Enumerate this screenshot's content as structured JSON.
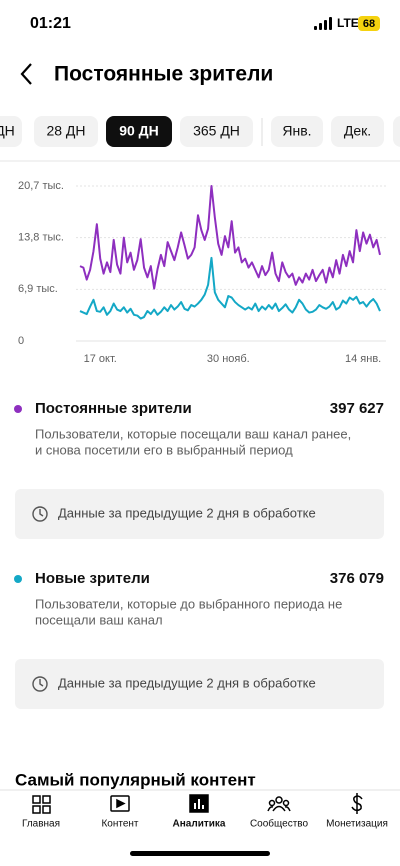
{
  "status_bar": {
    "time": "01:21",
    "network": "LTE",
    "battery": "68"
  },
  "header": {
    "title": "Постоянные зрители"
  },
  "tabs": [
    "ДН",
    "28 ДН",
    "90 ДН",
    "365 ДН",
    "Янв.",
    "Дек."
  ],
  "selected_tab": 2,
  "chart_data": {
    "type": "line",
    "categories": [
      null,
      null,
      null,
      null,
      null,
      null,
      "17 окт.",
      null,
      null,
      null,
      null,
      null,
      null,
      null,
      null,
      null,
      null,
      null,
      null,
      null,
      null,
      null,
      null,
      null,
      null,
      null,
      null,
      null,
      null,
      null,
      null,
      null,
      null,
      null,
      null,
      null,
      null,
      null,
      null,
      null,
      null,
      null,
      null,
      null,
      "30 нояб.",
      null,
      null,
      null,
      null,
      null,
      null,
      null,
      null,
      null,
      null,
      null,
      null,
      null,
      null,
      null,
      null,
      null,
      null,
      null,
      null,
      null,
      null,
      null,
      null,
      null,
      null,
      null,
      null,
      null,
      null,
      null,
      null,
      null,
      null,
      null,
      null,
      null,
      null,
      null,
      "14 янв.",
      null,
      null,
      null,
      null,
      null
    ],
    "series": [
      {
        "name": "Постоянные зрители",
        "color": "#8e2fbf",
        "values": [
          10.0,
          9.8,
          8.2,
          9.5,
          12.0,
          15.6,
          11.0,
          9.0,
          10.5,
          9.2,
          13.5,
          10.2,
          9.0,
          13.8,
          10.5,
          11.8,
          9.5,
          10.8,
          13.6,
          9.8,
          8.5,
          10.0,
          7.0,
          9.6,
          11.5,
          10.0,
          13.2,
          12.0,
          10.8,
          12.5,
          14.5,
          12.8,
          11.0,
          11.5,
          12.5,
          16.8,
          14.8,
          13.5,
          15.0,
          20.7,
          16.5,
          13.0,
          11.5,
          14.0,
          12.5,
          16.0,
          11.8,
          12.5,
          10.5,
          11.0,
          9.8,
          10.5,
          9.5,
          8.5,
          10.0,
          8.8,
          9.5,
          11.8,
          9.0,
          8.0,
          10.5,
          9.2,
          8.5,
          9.0,
          7.5,
          8.5,
          7.8,
          9.0,
          8.2,
          9.5,
          8.0,
          8.8,
          9.5,
          7.8,
          9.8,
          8.5,
          10.8,
          9.0,
          11.5,
          10.0,
          12.0,
          10.5,
          14.8,
          12.0,
          14.5,
          13.0,
          14.2,
          12.5,
          13.5,
          11.5
        ]
      },
      {
        "name": "Новые зрители",
        "color": "#14a8c6",
        "values": [
          4.0,
          3.8,
          3.6,
          4.6,
          5.5,
          4.0,
          3.9,
          4.5,
          3.5,
          4.0,
          5.0,
          4.2,
          4.0,
          4.5,
          3.8,
          4.3,
          3.5,
          3.4,
          3.0,
          3.2,
          4.0,
          3.6,
          4.2,
          3.5,
          3.9,
          4.5,
          4.0,
          4.8,
          4.2,
          4.6,
          5.2,
          4.3,
          4.1,
          4.8,
          4.6,
          5.0,
          5.5,
          6.2,
          7.5,
          11.1,
          6.5,
          5.5,
          5.0,
          4.5,
          6.0,
          5.8,
          5.2,
          4.8,
          4.5,
          4.2,
          4.5,
          4.2,
          5.0,
          4.0,
          4.6,
          4.2,
          4.8,
          4.3,
          5.0,
          4.0,
          4.4,
          4.9,
          4.2,
          3.8,
          4.5,
          5.5,
          5.0,
          4.2,
          3.8,
          3.9,
          4.2,
          4.8,
          4.5,
          4.3,
          4.6,
          5.2,
          4.2,
          4.5,
          5.4,
          5.0,
          5.8,
          5.5,
          5.9,
          5.0,
          5.2,
          4.6,
          5.2,
          5.6,
          5.0,
          4.0
        ]
      }
    ],
    "ylim": [
      0,
      20.7
    ],
    "yticks": [
      0,
      {
        "value": 6.9,
        "label": "6,9 тыс."
      },
      {
        "value": 13.8,
        "label": "13,8 тыс."
      },
      {
        "value": 20.7,
        "label": "20,7 тыс."
      }
    ],
    "grid": true
  },
  "metrics": [
    {
      "total": "397 627",
      "description": [
        "Пользователи, которые посещали ваш канал ранее,",
        "и снова посетили его в выбранный период"
      ],
      "notice": "Данные за предыдущие 2 дня в обработке"
    },
    {
      "total": "376 079",
      "description": [
        "Пользователи, которые до выбранного периода не",
        "посещали ваш канал"
      ],
      "notice": "Данные за предыдущие 2 дня в обработке"
    }
  ],
  "section_title": "Самый популярный контент",
  "nav": [
    "Главная",
    "Контент",
    "Аналитика",
    "Сообщество",
    "Монетизация"
  ],
  "active_nav": 2
}
